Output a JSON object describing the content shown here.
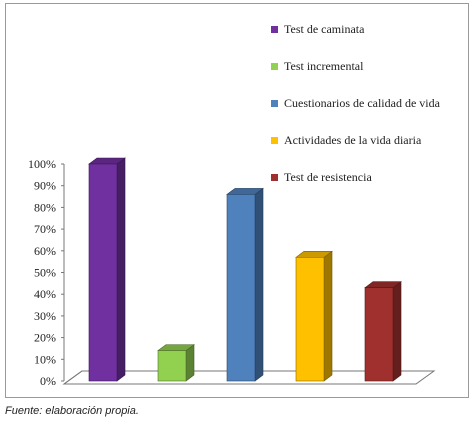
{
  "chart_data": {
    "type": "bar",
    "categories": [
      "Test de caminata",
      "Test incremental",
      "Cuestionarios de calidad de vida",
      "Actividades de la vida diaria",
      "Test de resistencia"
    ],
    "values": [
      100,
      14,
      86,
      57,
      43
    ],
    "colors": [
      "#7030a0",
      "#92d050",
      "#4f81bd",
      "#ffc000",
      "#a0302e"
    ],
    "yticks": [
      "0%",
      "10%",
      "20%",
      "30%",
      "40%",
      "50%",
      "60%",
      "70%",
      "80%",
      "90%",
      "100%"
    ],
    "ylim": [
      0,
      100
    ],
    "legend_position": "top-right",
    "grid": false,
    "three_d": true
  },
  "source_note": "Fuente: elaboración propia."
}
